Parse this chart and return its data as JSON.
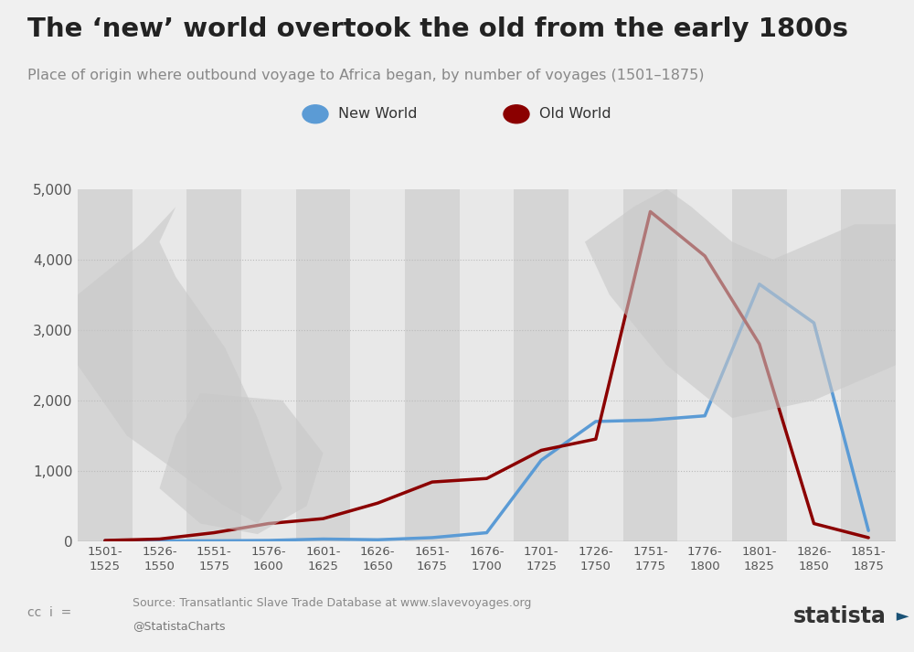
{
  "title": "The ‘new’ world overtook the old from the early 1800s",
  "subtitle": "Place of origin where outbound voyage to Africa began, by number of voyages (1501–1875)",
  "categories": [
    "1501-\n1525",
    "1526-\n1550",
    "1551-\n1575",
    "1576-\n1600",
    "1601-\n1625",
    "1626-\n1650",
    "1651-\n1675",
    "1676-\n1700",
    "1701-\n1725",
    "1726-\n1750",
    "1751-\n1775",
    "1776-\n1800",
    "1801-\n1825",
    "1826-\n1850",
    "1851-\n1875"
  ],
  "new_world": [
    5,
    5,
    5,
    10,
    30,
    20,
    50,
    120,
    1150,
    1700,
    1720,
    1780,
    3650,
    3100,
    150
  ],
  "old_world": [
    10,
    30,
    120,
    250,
    320,
    540,
    840,
    890,
    1290,
    1450,
    4680,
    4050,
    2800,
    250,
    50
  ],
  "new_world_color": "#5b9bd5",
  "old_world_color": "#8b0000",
  "background_color": "#f0f0f0",
  "ylim": [
    0,
    5000
  ],
  "yticks": [
    0,
    1000,
    2000,
    3000,
    4000,
    5000
  ],
  "stripe_light": "#e8e8e8",
  "stripe_dark": "#d5d5d5",
  "grid_color": "#bbbbbb",
  "source_text": "Source: Transatlantic Slave Trade Database at www.slavevoyages.org",
  "credit_text": "@StatistaCharts"
}
